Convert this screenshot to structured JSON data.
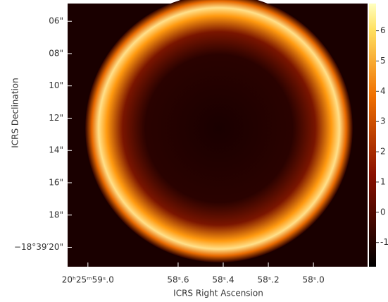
{
  "chart_data": {
    "type": "image",
    "xlabel": "ICRS Right Ascension",
    "ylabel": "ICRS Declination",
    "xlim": [
      59.09,
      57.76
    ],
    "xticks": [
      {
        "value": 59.0,
        "label": "20ʰ25ᵐ59ˢ.0"
      },
      {
        "value": 58.6,
        "label": "58ˢ.6"
      },
      {
        "value": 58.4,
        "label": "58ˢ.4"
      },
      {
        "value": 58.2,
        "label": "58ˢ.2"
      },
      {
        "value": 58.0,
        "label": "58ˢ.0"
      }
    ],
    "ylim": [
      4.9,
      21.2
    ],
    "yticks": [
      {
        "value": 6,
        "label": "06\""
      },
      {
        "value": 8,
        "label": "08\""
      },
      {
        "value": 10,
        "label": "10\""
      },
      {
        "value": 12,
        "label": "12\""
      },
      {
        "value": 14,
        "label": "14\""
      },
      {
        "value": 16,
        "label": "16\""
      },
      {
        "value": 18,
        "label": "18\""
      },
      {
        "value": 20,
        "label": "−18°39′20\""
      }
    ],
    "colorbar": {
      "lim": [
        -1.8,
        6.9
      ],
      "ticks": [
        -1,
        0,
        1,
        2,
        3,
        4,
        5,
        6
      ]
    }
  }
}
